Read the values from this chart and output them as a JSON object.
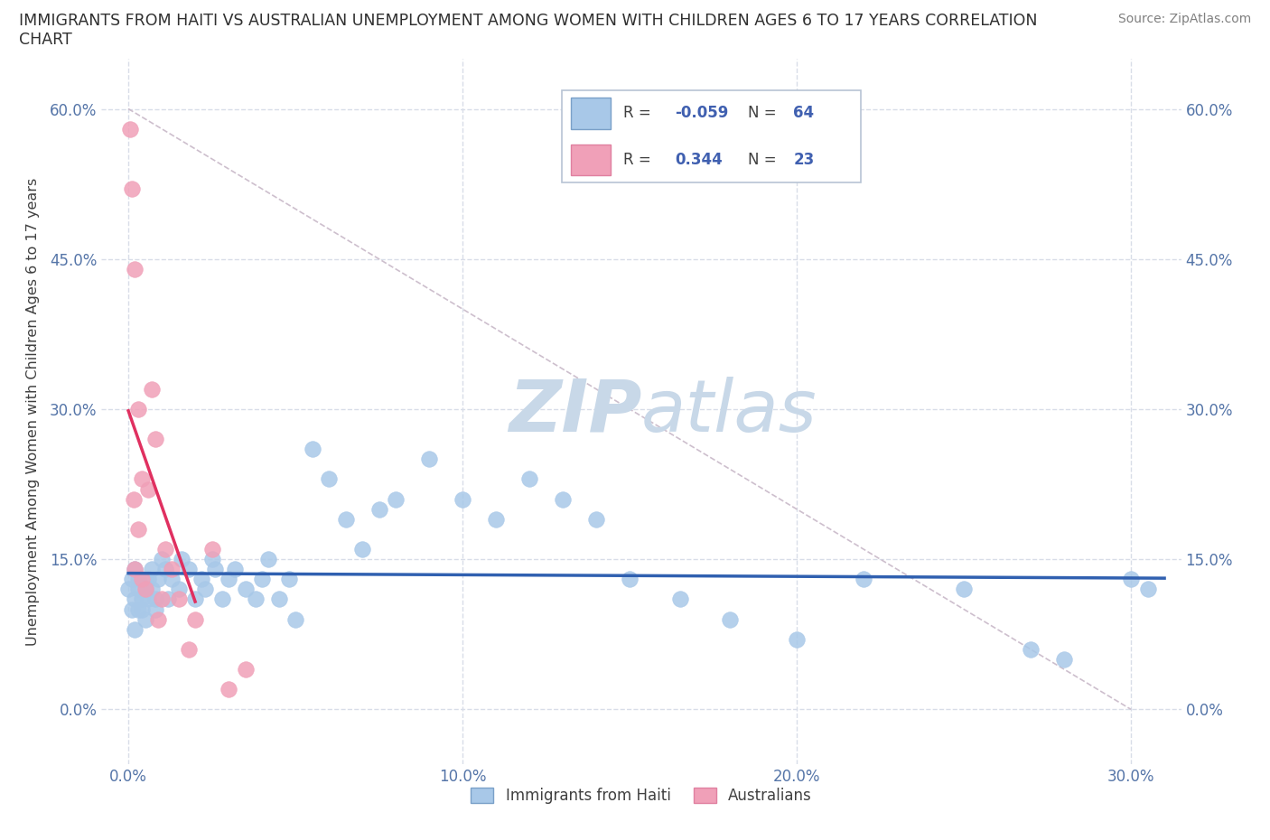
{
  "title_line1": "IMMIGRANTS FROM HAITI VS AUSTRALIAN UNEMPLOYMENT AMONG WOMEN WITH CHILDREN AGES 6 TO 17 YEARS CORRELATION",
  "title_line2": "CHART",
  "source": "Source: ZipAtlas.com",
  "ylabel": "Unemployment Among Women with Children Ages 6 to 17 years",
  "legend_labels": [
    "Immigrants from Haiti",
    "Australians"
  ],
  "R1": -0.059,
  "N1": 64,
  "R2": 0.344,
  "N2": 23,
  "color_blue": "#a8c8e8",
  "color_pink": "#f0a0b8",
  "line_blue": "#3060b0",
  "line_pink": "#e03060",
  "line_dashed_color": "#c8b8c8",
  "watermark_color": "#c8d8e8",
  "x_tick_vals": [
    0.0,
    0.1,
    0.2,
    0.3
  ],
  "x_tick_labels": [
    "0.0%",
    "10.0%",
    "20.0%",
    "30.0%"
  ],
  "y_tick_vals": [
    0.0,
    0.15,
    0.3,
    0.45,
    0.6
  ],
  "y_tick_labels": [
    "0.0%",
    "15.0%",
    "30.0%",
    "45.0%",
    "60.0%"
  ],
  "xlim": [
    -0.008,
    0.315
  ],
  "ylim": [
    -0.055,
    0.65
  ],
  "haiti_x": [
    0.0,
    0.001,
    0.001,
    0.002,
    0.002,
    0.002,
    0.003,
    0.003,
    0.003,
    0.004,
    0.004,
    0.005,
    0.005,
    0.006,
    0.006,
    0.007,
    0.007,
    0.008,
    0.008,
    0.009,
    0.01,
    0.011,
    0.012,
    0.013,
    0.015,
    0.016,
    0.018,
    0.02,
    0.022,
    0.023,
    0.025,
    0.026,
    0.028,
    0.03,
    0.032,
    0.035,
    0.038,
    0.04,
    0.042,
    0.045,
    0.048,
    0.05,
    0.055,
    0.06,
    0.065,
    0.07,
    0.075,
    0.08,
    0.09,
    0.1,
    0.11,
    0.12,
    0.13,
    0.14,
    0.15,
    0.165,
    0.18,
    0.2,
    0.22,
    0.25,
    0.27,
    0.3,
    0.305,
    0.28
  ],
  "haiti_y": [
    0.12,
    0.13,
    0.1,
    0.14,
    0.11,
    0.08,
    0.13,
    0.1,
    0.12,
    0.11,
    0.1,
    0.12,
    0.09,
    0.13,
    0.11,
    0.14,
    0.12,
    0.11,
    0.1,
    0.13,
    0.15,
    0.14,
    0.11,
    0.13,
    0.12,
    0.15,
    0.14,
    0.11,
    0.13,
    0.12,
    0.15,
    0.14,
    0.11,
    0.13,
    0.14,
    0.12,
    0.11,
    0.13,
    0.15,
    0.11,
    0.13,
    0.09,
    0.26,
    0.23,
    0.19,
    0.16,
    0.2,
    0.21,
    0.25,
    0.21,
    0.19,
    0.23,
    0.21,
    0.19,
    0.13,
    0.11,
    0.09,
    0.07,
    0.13,
    0.12,
    0.06,
    0.13,
    0.12,
    0.05
  ],
  "aus_x": [
    0.0005,
    0.001,
    0.0015,
    0.002,
    0.002,
    0.003,
    0.003,
    0.004,
    0.004,
    0.005,
    0.006,
    0.007,
    0.008,
    0.009,
    0.01,
    0.011,
    0.013,
    0.015,
    0.018,
    0.02,
    0.025,
    0.03,
    0.035
  ],
  "aus_y": [
    0.58,
    0.52,
    0.21,
    0.44,
    0.14,
    0.3,
    0.18,
    0.23,
    0.13,
    0.12,
    0.22,
    0.32,
    0.27,
    0.09,
    0.11,
    0.16,
    0.14,
    0.11,
    0.06,
    0.09,
    0.16,
    0.02,
    0.04
  ]
}
